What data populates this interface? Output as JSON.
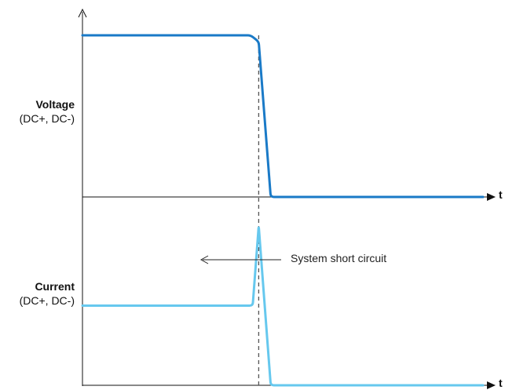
{
  "chart_data": {
    "type": "line",
    "charts": [
      {
        "id": "voltage",
        "ylabel": "Voltage",
        "ylabel_sub": "(DC+, DC-)",
        "xlabel": "t",
        "color": "#1a7ac7",
        "series": [
          {
            "x": [
              0,
              0.42,
              0.44,
              0.47,
              1.0
            ],
            "y": [
              1.0,
              1.0,
              0.96,
              0.0,
              0.0
            ]
          }
        ]
      },
      {
        "id": "current",
        "ylabel": "Current",
        "ylabel_sub": "(DC+, DC-)",
        "xlabel": "t",
        "color": "#66c8ee",
        "series": [
          {
            "x": [
              0,
              0.425,
              0.44,
              0.455,
              0.47,
              1.0
            ],
            "y": [
              0.5,
              0.5,
              1.0,
              0.5,
              0.0,
              0.0
            ]
          }
        ]
      }
    ],
    "event_x": 0.44,
    "annotation": "System short circuit",
    "grid": false
  }
}
